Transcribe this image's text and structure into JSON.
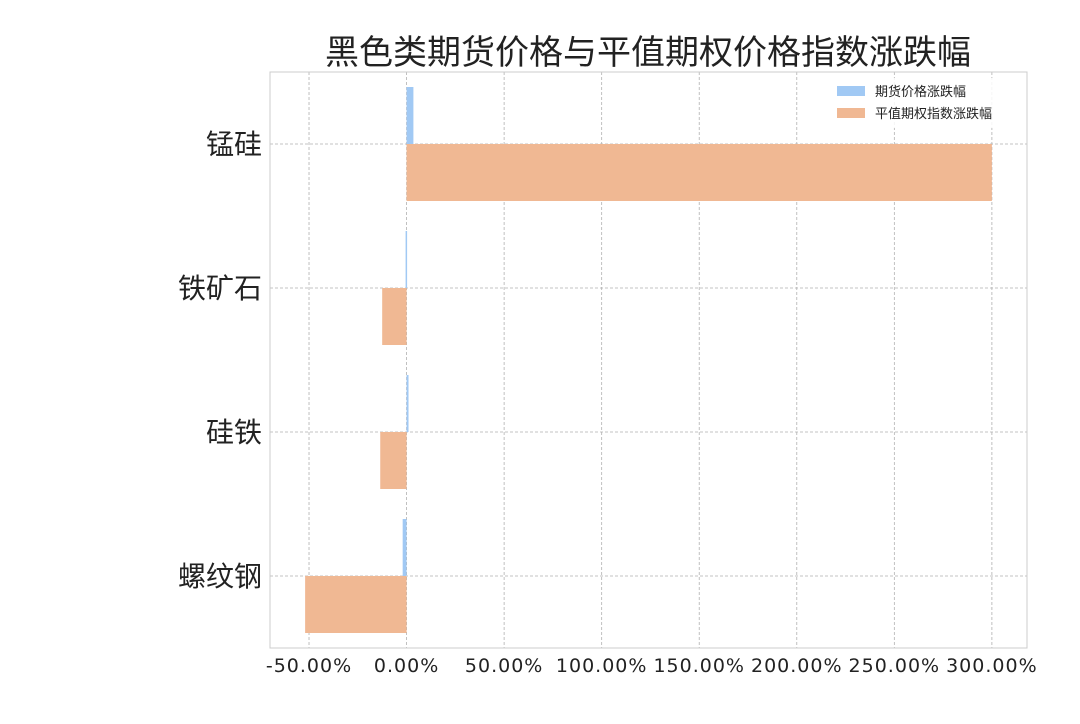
{
  "chart_data": {
    "type": "bar",
    "orientation": "horizontal",
    "title": "黑色类期货价格与平值期权价格指数涨跌幅",
    "xlabel": "",
    "ylabel": "",
    "categories": [
      "锰硅",
      "铁矿石",
      "硅铁",
      "螺纹钢"
    ],
    "series": [
      {
        "name": "期货价格涨跌幅",
        "values": [
          3.5,
          -0.5,
          1.0,
          -2.0
        ],
        "color": "#a1c9f4"
      },
      {
        "name": "平值期权指数涨跌幅",
        "values": [
          300.0,
          -12.5,
          -13.5,
          -52.0
        ],
        "color": "#f0b893"
      }
    ],
    "xlim": [
      -70,
      318
    ],
    "xticks": [
      -50,
      0,
      50,
      100,
      150,
      200,
      250,
      300
    ],
    "xtick_labels": [
      "-50.00%",
      "0.00%",
      "50.00%",
      "100.00%",
      "150.00%",
      "200.00%",
      "250.00%",
      "300.00%"
    ],
    "grid": true,
    "legend_position": "top-right"
  }
}
